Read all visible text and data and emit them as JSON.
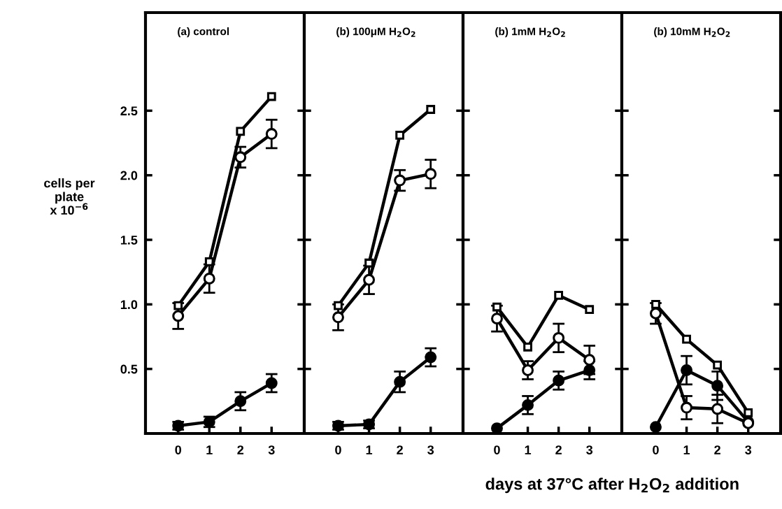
{
  "chart_data": [
    {
      "type": "line",
      "title": "(a) control",
      "ylabel": "cells per\nplate\nx 10$^{−6}$",
      "x": [
        0,
        1,
        2,
        3
      ],
      "xlim": [
        -1.05,
        4.05
      ],
      "xticks": [
        0,
        1,
        2,
        3
      ],
      "ylim": [
        0,
        3.26
      ],
      "yticks": [
        0.5,
        {
          "value": 1.0,
          "label": "1.0"
        },
        1.5,
        {
          "value": 2.0,
          "label": "2.0"
        },
        2.5
      ],
      "grid": false,
      "legend": false,
      "line_style": "solid",
      "series": [
        {
          "color": "#000000",
          "marker": "square",
          "colors": [
            "#ffffff",
            "#ffffff",
            "#ffffff",
            "#ffffff"
          ],
          "values": [
            0.99,
            1.33,
            2.34,
            2.61
          ]
        },
        {
          "color": "#000000",
          "marker": "circle",
          "colors": [
            "#ffffff",
            "#ffffff",
            "#ffffff",
            "#ffffff"
          ],
          "values": [
            0.91,
            1.2,
            2.14,
            2.32
          ],
          "errors": [
            0.1,
            0.11,
            0.08,
            0.11
          ]
        },
        {
          "color": "#000000",
          "marker": "circle",
          "values": [
            0.06,
            0.09,
            0.25,
            0.39
          ],
          "errors": [
            0.03,
            0.04,
            0.07,
            0.07
          ]
        }
      ]
    },
    {
      "type": "line",
      "title": "(b) 100μM H$_{2}$O$_{2}$",
      "x": [
        0,
        1,
        2,
        3
      ],
      "xlim": [
        -1.1,
        4.05
      ],
      "xticks": [
        0,
        1,
        2,
        3
      ],
      "ylim": [
        0,
        3.26
      ],
      "yticks": [
        0.5,
        1,
        1.5,
        2,
        2.5
      ],
      "tick_labels": "x",
      "grid": false,
      "legend": false,
      "line_style": "solid",
      "series": [
        {
          "color": "#000000",
          "marker": "square",
          "colors": [
            "#ffffff",
            "#ffffff",
            "#ffffff",
            "#ffffff"
          ],
          "values": [
            0.99,
            1.32,
            2.31,
            2.51
          ]
        },
        {
          "color": "#000000",
          "marker": "circle",
          "colors": [
            "#ffffff",
            "#ffffff",
            "#ffffff",
            "#ffffff"
          ],
          "values": [
            0.9,
            1.19,
            1.96,
            2.01
          ],
          "errors": [
            0.1,
            0.11,
            0.08,
            0.11
          ]
        },
        {
          "color": "#000000",
          "marker": "circle",
          "values": [
            0.06,
            0.07,
            0.4,
            0.59
          ],
          "errors": [
            0.03,
            0.03,
            0.08,
            0.07
          ]
        }
      ]
    },
    {
      "type": "line",
      "title": "(b) 1mM H$_{2}$O$_{2}$",
      "x": [
        0,
        1,
        2,
        3
      ],
      "xlim": [
        -1.1,
        4.05
      ],
      "xticks": [
        0,
        1,
        2,
        3
      ],
      "ylim": [
        0,
        3.26
      ],
      "yticks": [
        0.5,
        1,
        1.5,
        2,
        2.5
      ],
      "tick_labels": "x",
      "grid": false,
      "legend": false,
      "line_style": "solid",
      "series": [
        {
          "color": "#000000",
          "marker": "square",
          "colors": [
            "#ffffff",
            "#ffffff",
            "#ffffff",
            "#ffffff"
          ],
          "values": [
            0.98,
            0.67,
            1.07,
            0.96
          ]
        },
        {
          "color": "#000000",
          "marker": "circle",
          "colors": [
            "#ffffff",
            "#ffffff",
            "#ffffff",
            "#ffffff"
          ],
          "values": [
            0.89,
            0.49,
            0.74,
            0.57
          ],
          "errors": [
            0.1,
            0.07,
            0.11,
            0.11
          ]
        },
        {
          "color": "#000000",
          "marker": "circle",
          "values": [
            0.04,
            0.22,
            0.41,
            0.49
          ],
          "errors": [
            null,
            0.07,
            0.07,
            0.07
          ]
        }
      ]
    },
    {
      "type": "line",
      "title": "(b) 10mM H$_{2}$O$_{2}$",
      "xlabel": "days at 37°C after H$_{2}$O$_{2}$ addition",
      "x": [
        0,
        1,
        2,
        3
      ],
      "xlim": [
        -1.1,
        4.05
      ],
      "xticks": [
        0,
        1,
        2,
        3
      ],
      "ylim": [
        0,
        3.26
      ],
      "yticks": [
        0.5,
        1,
        1.5,
        2,
        2.5
      ],
      "tick_labels": "x",
      "grid": false,
      "legend": false,
      "line_style": "solid",
      "series": [
        {
          "color": "#000000",
          "marker": "square",
          "colors": [
            "#ffffff",
            "#ffffff",
            "#ffffff",
            "#ffffff"
          ],
          "values": [
            1.0,
            0.73,
            0.53,
            0.16
          ]
        },
        {
          "color": "#000000",
          "marker": "circle",
          "colors": [
            "#ffffff",
            "#ffffff",
            "#ffffff",
            "#ffffff"
          ],
          "values": [
            0.93,
            0.2,
            0.19,
            0.08
          ],
          "errors": [
            0.08,
            0.09,
            0.11,
            null
          ]
        },
        {
          "color": "#000000",
          "marker": "circle",
          "values": [
            0.05,
            0.49,
            0.37,
            0.09
          ],
          "errors": [
            null,
            0.11,
            0.11,
            null
          ]
        }
      ]
    }
  ]
}
